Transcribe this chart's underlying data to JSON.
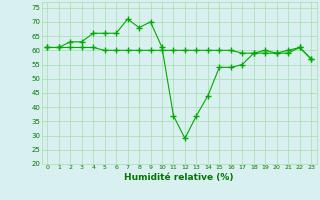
{
  "x": [
    0,
    1,
    2,
    3,
    4,
    5,
    6,
    7,
    8,
    9,
    10,
    11,
    12,
    13,
    14,
    15,
    16,
    17,
    18,
    19,
    20,
    21,
    22,
    23
  ],
  "line1": [
    61,
    61,
    63,
    63,
    66,
    66,
    66,
    71,
    68,
    70,
    61,
    37,
    29,
    37,
    44,
    54,
    54,
    55,
    59,
    60,
    59,
    60,
    61,
    57
  ],
  "line2": [
    61,
    61,
    61,
    61,
    61,
    60,
    60,
    60,
    60,
    60,
    60,
    60,
    60,
    60,
    60,
    60,
    60,
    59,
    59,
    59,
    59,
    59,
    61,
    57
  ],
  "line_color": "#00aa00",
  "bg_color": "#d8f0f0",
  "grid_color": "#aaddaa",
  "xlabel": "Humidité relative (%)",
  "xlabel_color": "#007700",
  "tick_color": "#007700",
  "ylim": [
    20,
    77
  ],
  "yticks": [
    20,
    25,
    30,
    35,
    40,
    45,
    50,
    55,
    60,
    65,
    70,
    75
  ],
  "xticks": [
    0,
    1,
    2,
    3,
    4,
    5,
    6,
    7,
    8,
    9,
    10,
    11,
    12,
    13,
    14,
    15,
    16,
    17,
    18,
    19,
    20,
    21,
    22,
    23
  ],
  "marker": "+",
  "markersize": 4,
  "linewidth": 0.8
}
